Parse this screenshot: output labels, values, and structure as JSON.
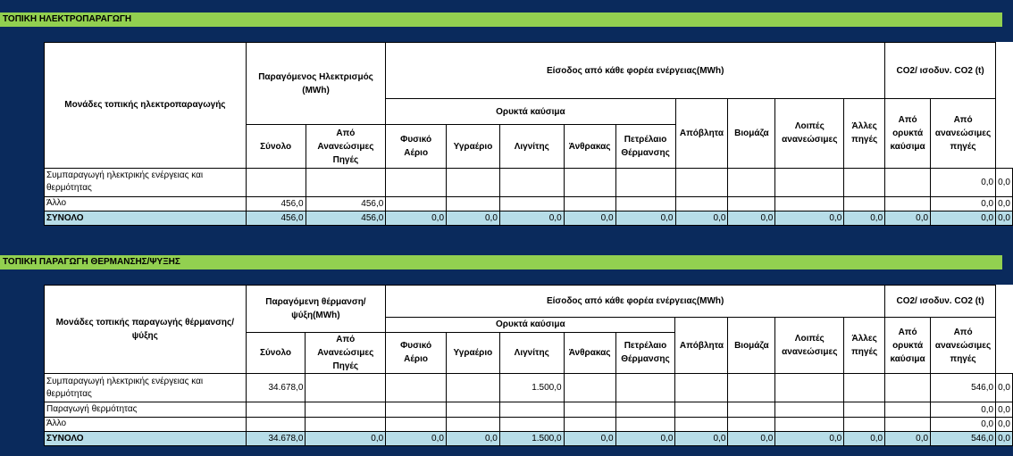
{
  "sections": [
    {
      "title": "ΤΟΠΙΚΗ ΗΛΕΚΤΡΟΠΑΡΑΓΩΓΗ",
      "header_units": "Μονάδες τοπικής ηλεκτροπαραγωγής",
      "header_produced": "Παραγόμενος Ηλεκτρισμός (MWh)",
      "rows": [
        {
          "label": "Συμπαραγωγή ηλεκτρικής ενέργειας και θερμότητας",
          "cells": [
            "",
            "",
            "",
            "",
            "",
            "",
            "",
            "",
            "",
            "",
            "",
            "",
            "0,0",
            "0,0"
          ]
        },
        {
          "label": "Άλλο",
          "cells": [
            "456,0",
            "456,0",
            "",
            "",
            "",
            "",
            "",
            "",
            "",
            "",
            "",
            "",
            "0,0",
            "0,0"
          ]
        }
      ],
      "total": {
        "label": "ΣΥΝΟΛΟ",
        "cells": [
          "456,0",
          "456,0",
          "0,0",
          "0,0",
          "0,0",
          "0,0",
          "0,0",
          "0,0",
          "0,0",
          "0,0",
          "0,0",
          "0,0",
          "0,0",
          "0,0"
        ]
      }
    },
    {
      "title": "ΤΟΠΙΚΗ ΠΑΡΑΓΩΓΗ ΘΕΡΜΑΝΣΗΣ/ΨΥΞΗΣ",
      "header_units": "Μονάδες τοπικής παραγωγής θέρμανσης/ψύξης",
      "header_produced": "Παραγόμενη θέρμανση/ψύξη(MWh)",
      "rows": [
        {
          "label": "Συμπαραγωγή ηλεκτρικής ενέργειας και θερμότητας",
          "cells": [
            "34.678,0",
            "",
            "",
            "",
            "1.500,0",
            "",
            "",
            "",
            "",
            "",
            "",
            "",
            "546,0",
            "0,0"
          ]
        },
        {
          "label": "Παραγωγή θερμότητας",
          "cells": [
            "",
            "",
            "",
            "",
            "",
            "",
            "",
            "",
            "",
            "",
            "",
            "",
            "0,0",
            "0,0"
          ]
        },
        {
          "label": "Άλλο",
          "cells": [
            "",
            "",
            "",
            "",
            "",
            "",
            "",
            "",
            "",
            "",
            "",
            "",
            "0,0",
            "0,0"
          ]
        }
      ],
      "total": {
        "label": "ΣΥΝΟΛΟ",
        "cells": [
          "34.678,0",
          "0,0",
          "0,0",
          "0,0",
          "1.500,0",
          "0,0",
          "0,0",
          "0,0",
          "0,0",
          "0,0",
          "0,0",
          "0,0",
          "546,0",
          "0,0"
        ]
      }
    }
  ],
  "common_headers": {
    "inputs": "Είσοδος από κάθε φορέα ενέργειας(MWh)",
    "co2": "CO2/ ισοδυν. CO2 (t)",
    "fossil": "Ορυκτά καύσιμα",
    "total": "Σύνολο",
    "renewable": "Από Ανανεώσιμες Πηγές",
    "natural_gas": "Φυσικό Αέριο",
    "liquid_gas": "Υγραέριο",
    "lignite": "Λιγνίτης",
    "coal": "Άνθρακας",
    "heating_oil": "Πετρέλαιο Θέρμανσης",
    "waste": "Απόβλητα",
    "biomass": "Βιομάζα",
    "other_renewables": "Λοιπές ανανεώσιμες",
    "other_sources": "Άλλες πηγές",
    "co2_fossil": "Από ορυκτά καύσιμα",
    "co2_renewable": "Από ανανεώσιμες πηγές"
  },
  "colors": {
    "page_bg": "#0a2a5c",
    "band_bg": "#92d050",
    "total_row_bg": "#b7dde8"
  }
}
